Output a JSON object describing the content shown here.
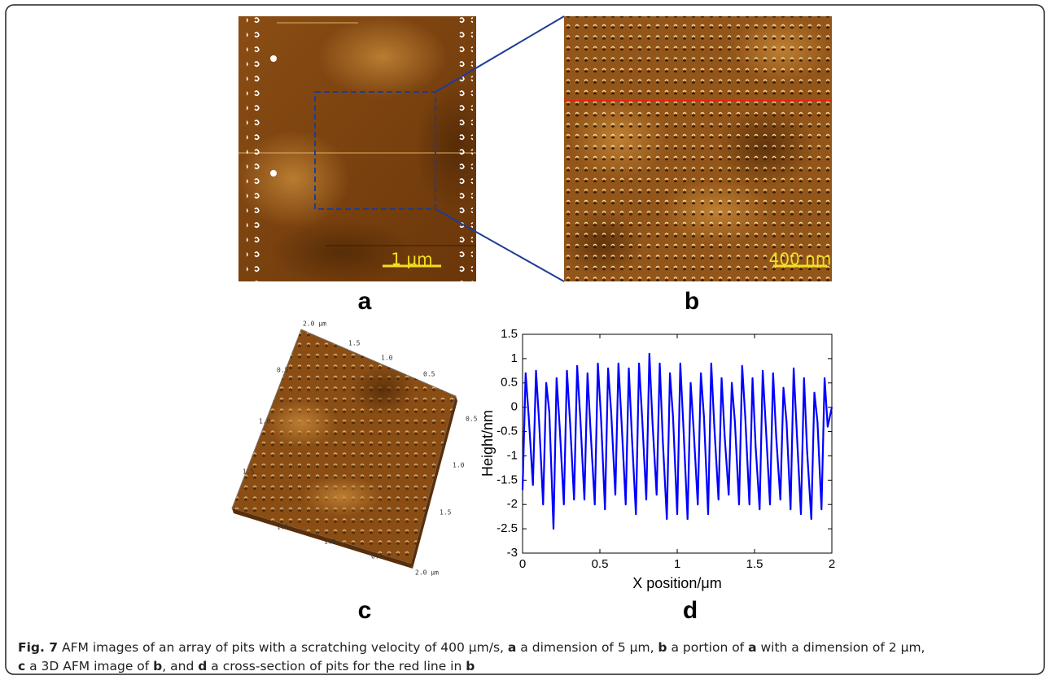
{
  "panels": {
    "a": {
      "label": "a",
      "scale_bar": "1 μm"
    },
    "b": {
      "label": "b",
      "scale_bar": "400 nm"
    },
    "c": {
      "label": "c",
      "axis_labels": [
        "2.0 μm",
        "1.5",
        "1.0",
        "0.5",
        "0.5",
        "1.0",
        "1.5",
        "0.5",
        "1.0",
        "1.5",
        "1.5",
        "1.0",
        "0.5",
        "2.0 μm"
      ]
    },
    "d": {
      "label": "d"
    }
  },
  "chart_data": {
    "type": "line",
    "x_label": "X position/μm",
    "y_label": "Height/nm",
    "color": "#0000ff",
    "xlim": [
      0,
      2
    ],
    "ylim": [
      -3,
      1.5
    ],
    "xticks": [
      0,
      0.5,
      1,
      1.5,
      2
    ],
    "yticks": [
      -3,
      -2.5,
      -2,
      -1.5,
      -1,
      -0.5,
      0,
      0.5,
      1,
      1.5
    ],
    "x": [
      0.0,
      0.02,
      0.04,
      0.067,
      0.087,
      0.107,
      0.133,
      0.153,
      0.173,
      0.2,
      0.22,
      0.24,
      0.267,
      0.287,
      0.307,
      0.333,
      0.353,
      0.373,
      0.4,
      0.42,
      0.44,
      0.467,
      0.487,
      0.507,
      0.533,
      0.553,
      0.573,
      0.6,
      0.62,
      0.64,
      0.667,
      0.687,
      0.707,
      0.733,
      0.753,
      0.773,
      0.8,
      0.82,
      0.84,
      0.867,
      0.887,
      0.907,
      0.933,
      0.953,
      0.973,
      1.0,
      1.02,
      1.04,
      1.067,
      1.087,
      1.107,
      1.133,
      1.153,
      1.173,
      1.2,
      1.22,
      1.24,
      1.267,
      1.287,
      1.307,
      1.333,
      1.353,
      1.373,
      1.4,
      1.42,
      1.44,
      1.467,
      1.487,
      1.507,
      1.533,
      1.553,
      1.573,
      1.6,
      1.62,
      1.64,
      1.667,
      1.687,
      1.707,
      1.733,
      1.753,
      1.773,
      1.8,
      1.82,
      1.84,
      1.867,
      1.887,
      1.907,
      1.933,
      1.953,
      1.973,
      2.0
    ],
    "values": [
      -1.7,
      0.7,
      -0.2,
      -1.6,
      0.75,
      -0.3,
      -2.0,
      0.5,
      -0.1,
      -2.5,
      0.6,
      -0.4,
      -2.0,
      0.75,
      -0.3,
      -1.9,
      0.85,
      -0.2,
      -1.9,
      0.7,
      -0.5,
      -2.0,
      0.9,
      -0.2,
      -2.1,
      0.8,
      -0.1,
      -1.8,
      0.9,
      -0.3,
      -2.0,
      0.8,
      -0.6,
      -2.2,
      0.9,
      -0.2,
      -1.9,
      1.1,
      -0.3,
      -1.8,
      0.9,
      -0.7,
      -2.3,
      0.7,
      -0.2,
      -2.2,
      0.9,
      -0.4,
      -2.3,
      0.5,
      -0.5,
      -2.0,
      0.7,
      -0.2,
      -2.2,
      0.9,
      -0.4,
      -1.9,
      0.6,
      -0.6,
      -1.8,
      0.5,
      -0.3,
      -2.0,
      0.85,
      -0.2,
      -2.0,
      0.6,
      -0.8,
      -2.1,
      0.75,
      -0.4,
      -2.0,
      0.7,
      -0.6,
      -1.9,
      0.4,
      -0.3,
      -2.1,
      0.8,
      -0.5,
      -2.2,
      0.6,
      -0.9,
      -2.3,
      0.3,
      -0.3,
      -2.1,
      0.6,
      -0.4,
      0.0
    ]
  },
  "caption": {
    "parts": [
      "Fig. 7",
      " AFM images of an array of pits with a scratching velocity of 400 μm/s, ",
      "a",
      " a dimension of 5 μm, ",
      "b",
      " a portion of ",
      "a",
      " with a dimension of 2 μm,",
      "c",
      " a 3D AFM image of ",
      "b",
      ", and ",
      "d",
      " a cross-section of pits for the red line in ",
      "b"
    ]
  }
}
